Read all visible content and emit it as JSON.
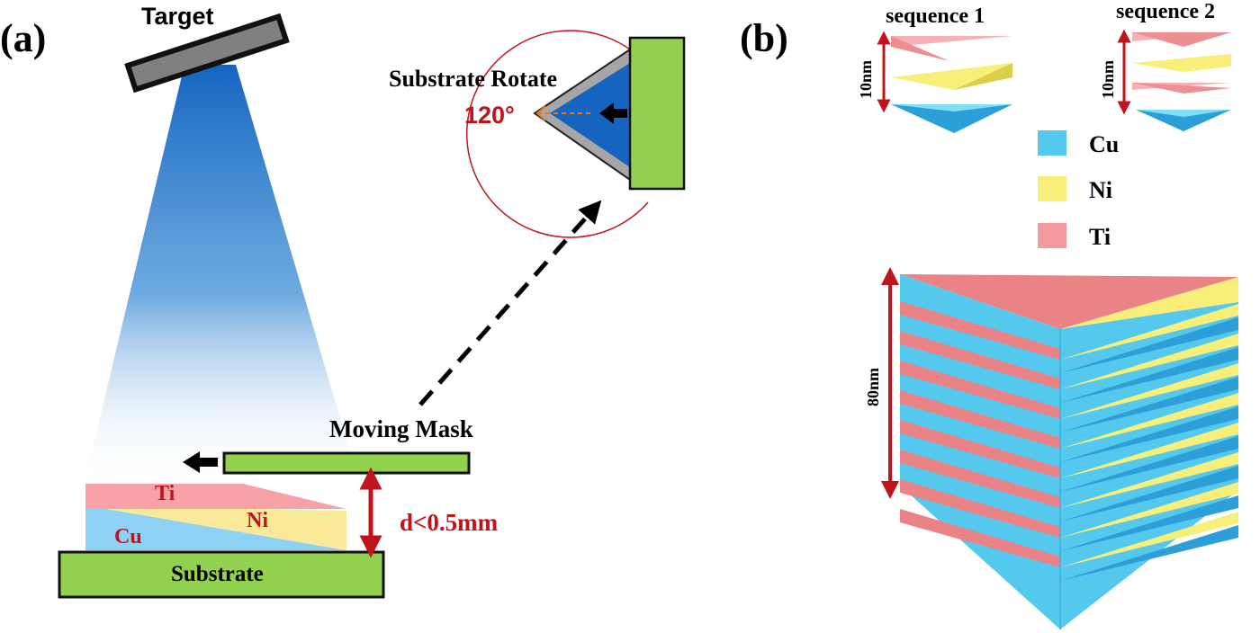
{
  "panel_a": {
    "label": "(a)",
    "target_label": "Target",
    "rotate_label": "Substrate Rotate",
    "angle_label": "120°",
    "mask_label": "Moving Mask",
    "gap_label": "d<0.5mm",
    "substrate_label": "Substrate",
    "layer_labels": {
      "ti": "Ti",
      "ni": "Ni",
      "cu": "Cu"
    }
  },
  "panel_b": {
    "label": "(b)",
    "sequence1_label": "sequence 1",
    "sequence2_label": "sequence 2",
    "seq1_thickness": "10nm",
    "seq2_thickness": "10nm",
    "stack_thickness": "80nm",
    "legend": [
      {
        "name": "Cu",
        "color": "#55c8ee"
      },
      {
        "name": "Ni",
        "color": "#f8ef7a"
      },
      {
        "name": "Ti",
        "color": "#f29a9c"
      }
    ]
  },
  "colors": {
    "accent_red": "#c0141c",
    "green": "#92d050",
    "beam_blue": "#1565c0"
  }
}
